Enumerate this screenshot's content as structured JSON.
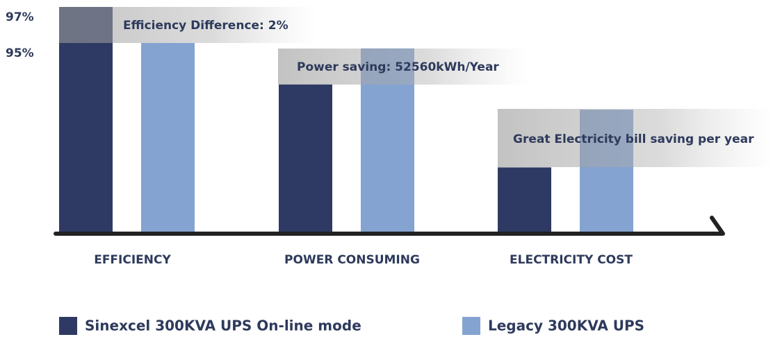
{
  "chart_data": {
    "type": "bar",
    "categories": [
      "EFFICIENCY",
      "POWER CONSUMING",
      "ELECTRICITY COST"
    ],
    "series": [
      {
        "name": "Sinexcel 300KVA UPS On-line mode",
        "color": "#2e3a63",
        "values": [
          97,
          92.7,
          88.1
        ]
      },
      {
        "name": "Legacy 300KVA UPS",
        "color": "#84a3d1",
        "values": [
          95,
          94.7,
          91.3
        ]
      }
    ],
    "ylim": [
      84.5,
      97
    ],
    "yticks": [
      {
        "value": 97,
        "label": "97%"
      },
      {
        "value": 95,
        "label": "95%"
      }
    ],
    "annotations": [
      "Efficiency Difference: 2%",
      "Power saving: 52560kWh/Year",
      "Great Electricity bill saving per year"
    ]
  }
}
